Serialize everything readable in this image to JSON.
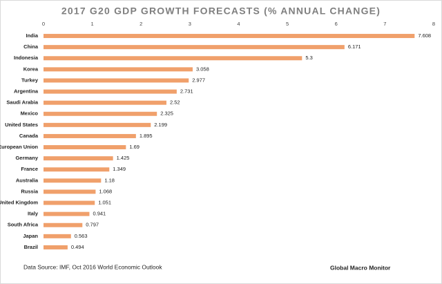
{
  "chart_data": {
    "type": "bar",
    "orientation": "horizontal",
    "title": "2017 G20 GDP GROWTH FORECASTS (% ANNUAL CHANGE)",
    "categories": [
      "India",
      "China",
      "Indonesia",
      "Korea",
      "Turkey",
      "Argentina",
      "Saudi Arabia",
      "Mexico",
      "United States",
      "Canada",
      "European Union",
      "Germany",
      "France",
      "Australia",
      "Russia",
      "United Kingdom",
      "Italy",
      "South Africa",
      "Japan",
      "Brazil"
    ],
    "values": [
      7.608,
      6.171,
      5.3,
      3.058,
      2.977,
      2.731,
      2.52,
      2.325,
      2.199,
      1.895,
      1.69,
      1.425,
      1.349,
      1.18,
      1.068,
      1.051,
      0.941,
      0.797,
      0.563,
      0.494
    ],
    "color": "#f0a06b",
    "xlim": [
      0,
      8
    ],
    "xticks": [
      0,
      1,
      2,
      3,
      4,
      5,
      6,
      7,
      8
    ],
    "grid": false,
    "source": "Data Source:  IMF, Oct 2016  World Economic Outlook",
    "credit": "Global Macro Monitor"
  }
}
